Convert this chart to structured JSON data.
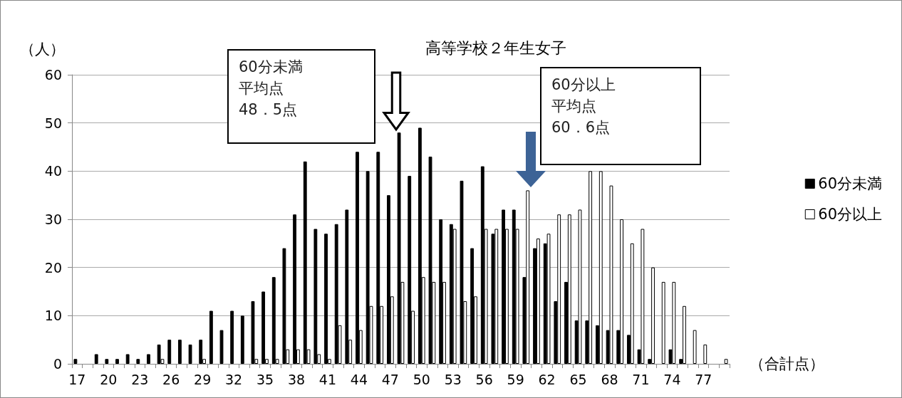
{
  "chart_data": {
    "type": "bar",
    "title": "高等学校２年生女子",
    "xlabel": "（合計点）",
    "ylabel": "（人）",
    "categories": [
      "17",
      null,
      null,
      "20",
      null,
      null,
      "23",
      null,
      null,
      "26",
      null,
      null,
      "29",
      null,
      null,
      "32",
      null,
      null,
      "35",
      null,
      null,
      "38",
      null,
      null,
      "41",
      null,
      null,
      "44",
      null,
      null,
      "47",
      null,
      null,
      "50",
      null,
      null,
      "53",
      null,
      null,
      "56",
      null,
      null,
      "59",
      null,
      null,
      "62",
      null,
      null,
      "65",
      null,
      null,
      "68",
      null,
      null,
      "71",
      null,
      null,
      "74",
      null,
      null,
      "77",
      null,
      null
    ],
    "series": [
      {
        "name": "60分未満",
        "color": "#000000",
        "values": [
          1,
          0,
          2,
          1,
          1,
          2,
          1,
          2,
          4,
          5,
          5,
          4,
          5,
          11,
          7,
          11,
          10,
          13,
          15,
          18,
          24,
          31,
          42,
          28,
          27,
          29,
          32,
          44,
          40,
          44,
          35,
          48,
          39,
          49,
          43,
          30,
          29,
          38,
          24,
          41,
          27,
          32,
          32,
          18,
          24,
          25,
          13,
          17,
          9,
          9,
          8,
          7,
          7,
          6,
          3,
          1,
          0,
          3,
          1,
          0,
          0,
          0,
          0
        ]
      },
      {
        "name": "60分以上",
        "color": "#ffffff",
        "values": [
          0,
          0,
          0,
          0,
          0,
          0,
          0,
          0,
          1,
          0,
          0,
          0,
          1,
          0,
          0,
          0,
          0,
          1,
          1,
          1,
          3,
          3,
          3,
          2,
          1,
          8,
          5,
          7,
          12,
          12,
          14,
          17,
          11,
          18,
          17,
          17,
          28,
          13,
          14,
          28,
          28,
          28,
          28,
          36,
          26,
          27,
          31,
          31,
          32,
          40,
          40,
          37,
          30,
          25,
          28,
          20,
          17,
          17,
          12,
          7,
          4,
          0,
          1
        ]
      }
    ],
    "ylim": [
      0,
      60
    ],
    "yticks": [
      0,
      10,
      20,
      30,
      40,
      50,
      60
    ],
    "grid": "y",
    "legend": "right",
    "annotations": [
      "60分未満",
      "平均点",
      "48．5点",
      "60分以上",
      "平均点",
      "60．6点"
    ]
  }
}
